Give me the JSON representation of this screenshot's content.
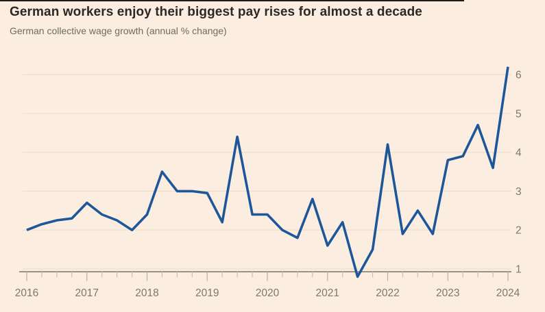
{
  "chart_data": {
    "type": "line",
    "title": "German workers enjoy their biggest pay rises for almost a decade",
    "subtitle": "German collective wage growth (annual % change)",
    "series_name": "German collective wage growth (annual % change)",
    "x": [
      2016.0,
      2016.25,
      2016.5,
      2016.75,
      2017.0,
      2017.25,
      2017.5,
      2017.75,
      2018.0,
      2018.25,
      2018.5,
      2018.75,
      2019.0,
      2019.25,
      2019.5,
      2019.75,
      2020.0,
      2020.25,
      2020.5,
      2020.75,
      2021.0,
      2021.25,
      2021.5,
      2021.75,
      2022.0,
      2022.25,
      2022.5,
      2022.75,
      2023.0,
      2023.25,
      2023.5,
      2023.75,
      2024.0
    ],
    "values": [
      2.0,
      2.15,
      2.25,
      2.3,
      2.7,
      2.4,
      2.25,
      2.0,
      2.4,
      3.5,
      3.0,
      3.0,
      2.95,
      2.2,
      4.4,
      2.4,
      2.4,
      2.0,
      1.8,
      2.8,
      1.6,
      2.2,
      0.8,
      1.5,
      4.2,
      1.9,
      2.5,
      1.9,
      3.8,
      3.9,
      4.7,
      3.6,
      6.2
    ],
    "x_tick_labels": [
      "2016",
      "2017",
      "2018",
      "2019",
      "2020",
      "2021",
      "2022",
      "2023",
      "2024"
    ],
    "x_minor_tick_interval_years": 0.25,
    "y_ticks": [
      1,
      2,
      3,
      4,
      5,
      6
    ],
    "y_tick_side": "right",
    "xlim": [
      2016,
      2024
    ],
    "ylim": [
      0.75,
      6.35
    ],
    "grid": "horizontal",
    "legend": "none",
    "xlabel": "",
    "ylabel": "",
    "line_color": "#1e5799",
    "background_color": "#fbeee0"
  }
}
